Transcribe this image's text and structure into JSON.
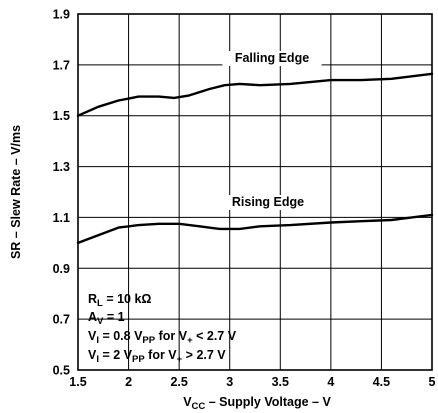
{
  "chart_data": {
    "type": "line",
    "xlabel": {
      "pre": "V",
      "sub": "CC",
      "post": " – Supply Voltage – V"
    },
    "ylabel": "SR – Slew Rate – V/ms",
    "xlim": [
      1.5,
      5
    ],
    "ylim": [
      0.5,
      1.9
    ],
    "xticks": [
      1.5,
      2,
      2.5,
      3,
      3.5,
      4,
      4.5,
      5
    ],
    "xtick_labels": [
      "1.5",
      "2",
      "2.5",
      "3",
      "3.5",
      "4",
      "4.5",
      "5"
    ],
    "yticks": [
      0.5,
      0.7,
      0.9,
      1.1,
      1.3,
      1.5,
      1.7,
      1.9
    ],
    "ytick_labels": [
      "0.5",
      "0.7",
      "0.9",
      "1.1",
      "1.3",
      "1.5",
      "1.7",
      "1.9"
    ],
    "grid": true,
    "series": [
      {
        "name": "Falling Edge",
        "x": [
          1.5,
          1.7,
          1.9,
          2.1,
          2.3,
          2.45,
          2.6,
          2.8,
          2.95,
          3.1,
          3.3,
          3.6,
          4.0,
          4.3,
          4.6,
          4.8,
          5.0
        ],
        "y": [
          1.5,
          1.535,
          1.56,
          1.575,
          1.575,
          1.57,
          1.58,
          1.605,
          1.62,
          1.625,
          1.62,
          1.625,
          1.64,
          1.64,
          1.645,
          1.655,
          1.665
        ]
      },
      {
        "name": "Rising Edge",
        "x": [
          1.5,
          1.7,
          1.9,
          2.1,
          2.3,
          2.5,
          2.7,
          2.9,
          3.1,
          3.3,
          3.6,
          4.0,
          4.3,
          4.6,
          4.8,
          5.0
        ],
        "y": [
          1.0,
          1.03,
          1.06,
          1.07,
          1.075,
          1.075,
          1.065,
          1.055,
          1.055,
          1.065,
          1.07,
          1.08,
          1.085,
          1.09,
          1.1,
          1.11
        ]
      }
    ],
    "conditions": [
      {
        "parts": [
          {
            "t": "R",
            "s": "n"
          },
          {
            "t": "L",
            "s": "sub"
          },
          {
            "t": " = 10 kΩ",
            "s": "n"
          }
        ]
      },
      {
        "parts": [
          {
            "t": "A",
            "s": "n"
          },
          {
            "t": "V",
            "s": "sub"
          },
          {
            "t": " = 1",
            "s": "n"
          }
        ]
      },
      {
        "parts": [
          {
            "t": "V",
            "s": "n"
          },
          {
            "t": "I",
            "s": "sub"
          },
          {
            "t": " = 0.8 V",
            "s": "n"
          },
          {
            "t": "PP",
            "s": "sub"
          },
          {
            "t": " for V",
            "s": "n"
          },
          {
            "t": "+",
            "s": "sub"
          },
          {
            "t": " < 2.7 V",
            "s": "n"
          }
        ]
      },
      {
        "parts": [
          {
            "t": "V",
            "s": "n"
          },
          {
            "t": "I",
            "s": "sub"
          },
          {
            "t": " = 2 V",
            "s": "n"
          },
          {
            "t": "PP",
            "s": "sub"
          },
          {
            "t": " for V",
            "s": "n"
          },
          {
            "t": "+",
            "s": "sub"
          },
          {
            "t": " > 2.7 V",
            "s": "n"
          }
        ]
      }
    ]
  }
}
